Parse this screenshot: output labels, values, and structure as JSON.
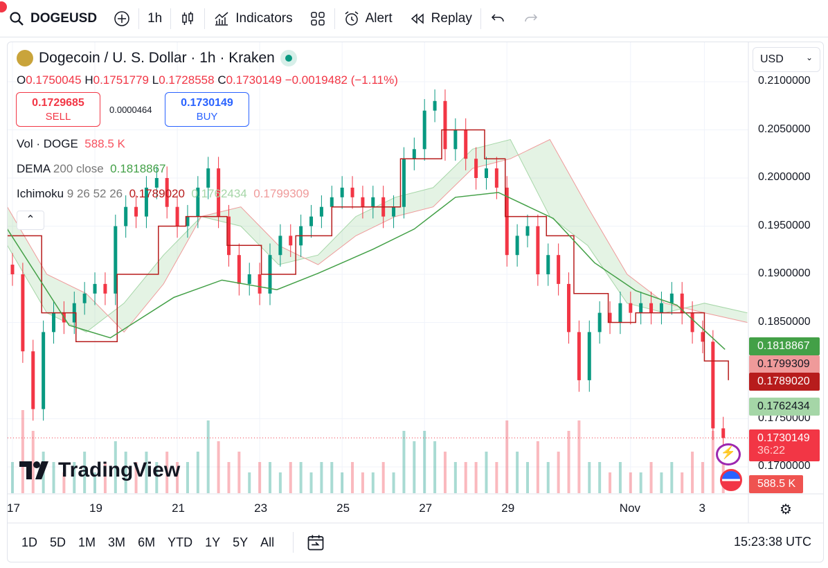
{
  "toolbar": {
    "symbol": "DOGEUSD",
    "interval": "1h",
    "indicators": "Indicators",
    "alert": "Alert",
    "replay": "Replay"
  },
  "legend": {
    "title": "Dogecoin / U. S. Dollar · 1h · Kraken",
    "open_label": "O",
    "open": "0.1750045",
    "high_label": "H",
    "high": "0.1751779",
    "low_label": "L",
    "low": "0.1728558",
    "close_label": "C",
    "close": "0.1730149",
    "change": "−0.0019482 (−1.11%)"
  },
  "trade": {
    "sell_price": "0.1729685",
    "sell_label": "SELL",
    "spread": "0.0000464",
    "buy_price": "0.1730149",
    "buy_label": "BUY"
  },
  "indicators": {
    "vol_name": "Vol · DOGE",
    "vol_value": "588.5 K",
    "dema_name": "DEMA",
    "dema_params": "200 close",
    "dema_value": "0.1818867",
    "ichi_name": "Ichimoku",
    "ichi_params": "9 26 52 26",
    "ichi_v1": "0.1789020",
    "ichi_v2": "0.1762434",
    "ichi_v3": "0.1799309"
  },
  "currency": "USD",
  "price_tags": {
    "dema": "0.1818867",
    "span_b": "0.1799309",
    "base": "0.1789020",
    "span_a": "0.1762434",
    "last": "0.1730149",
    "countdown": "36:22",
    "volume": "588.5 K"
  },
  "ranges": [
    "1D",
    "5D",
    "1M",
    "3M",
    "6M",
    "YTD",
    "1Y",
    "5Y",
    "All"
  ],
  "clock": "15:23:38 UTC",
  "logo": "TradingView",
  "colors": {
    "up": "#089981",
    "down": "#f23645",
    "dema": "#43a047",
    "base": "#b71c1c",
    "span_a": "#a5d6a7",
    "span_b": "#ef9a9a"
  },
  "chart_data": {
    "type": "candlestick",
    "title": "Dogecoin / U. S. Dollar · 1h · Kraken",
    "y_ticks": [
      "0.2100000",
      "0.2050000",
      "0.2000000",
      "0.1950000",
      "0.1900000",
      "0.1850000",
      "0.1750000",
      "0.1700000"
    ],
    "y_tick_values": [
      0.21,
      0.205,
      0.2,
      0.195,
      0.19,
      0.185,
      0.175,
      0.17
    ],
    "ylim": [
      0.1658,
      0.2143
    ],
    "x_ticks": [
      {
        "label": "17",
        "hour": 0
      },
      {
        "label": "19",
        "hour": 48
      },
      {
        "label": "21",
        "hour": 96
      },
      {
        "label": "23",
        "hour": 144
      },
      {
        "label": "25",
        "hour": 192
      },
      {
        "label": "27",
        "hour": 240
      },
      {
        "label": "29",
        "hour": 288
      },
      {
        "label": "Nov",
        "hour": 360
      },
      {
        "label": "3",
        "hour": 403
      }
    ],
    "step_hours": 6,
    "closes": [
      0.19,
      0.182,
      0.176,
      0.184,
      0.186,
      0.185,
      0.187,
      0.188,
      0.189,
      0.188,
      0.195,
      0.197,
      0.196,
      0.199,
      0.2,
      0.197,
      0.195,
      0.196,
      0.199,
      0.201,
      0.196,
      0.192,
      0.189,
      0.19,
      0.188,
      0.192,
      0.194,
      0.193,
      0.195,
      0.196,
      0.197,
      0.198,
      0.199,
      0.198,
      0.197,
      0.198,
      0.196,
      0.197,
      0.202,
      0.203,
      0.207,
      0.208,
      0.203,
      0.205,
      0.202,
      0.2,
      0.201,
      0.199,
      0.192,
      0.194,
      0.195,
      0.19,
      0.192,
      0.189,
      0.184,
      0.179,
      0.184,
      0.186,
      0.185,
      0.187,
      0.186,
      0.187,
      0.186,
      0.187,
      0.188,
      0.186,
      0.184,
      0.183,
      0.174,
      0.173
    ],
    "volumes": [
      3,
      8,
      6,
      4,
      3,
      2,
      3,
      4,
      2,
      3,
      5,
      4,
      3,
      4,
      3,
      4,
      3,
      3,
      4,
      7,
      5,
      3,
      4,
      2,
      3,
      3,
      2,
      3,
      3,
      2,
      3,
      3,
      2,
      3,
      2,
      2,
      3,
      2,
      6,
      5,
      6,
      5,
      4,
      3,
      3,
      3,
      4,
      3,
      7,
      4,
      3,
      5,
      3,
      4,
      6,
      7,
      3,
      3,
      2,
      3,
      2,
      2,
      3,
      2,
      3,
      2,
      4,
      3,
      6,
      4
    ],
    "dema": {
      "hours": [
        -3,
        33,
        57,
        94,
        122,
        154,
        178,
        210,
        234,
        258,
        283,
        315,
        339,
        363,
        387,
        415
      ],
      "values": [
        0.1947,
        0.1847,
        0.1834,
        0.1876,
        0.1894,
        0.1884,
        0.1901,
        0.1926,
        0.1947,
        0.198,
        0.1985,
        0.1958,
        0.1912,
        0.1883,
        0.1868,
        0.1822
      ]
    },
    "ichimoku_base": {
      "hours": [
        -3,
        17,
        37,
        61,
        85,
        101,
        125,
        145,
        165,
        186,
        210,
        226,
        250,
        275,
        287,
        311,
        327,
        347,
        363,
        387,
        403,
        417
      ],
      "values": [
        0.194,
        0.186,
        0.183,
        0.19,
        0.195,
        0.196,
        0.193,
        0.19,
        0.194,
        0.197,
        0.197,
        0.202,
        0.205,
        0.202,
        0.196,
        0.194,
        0.188,
        0.185,
        0.186,
        0.186,
        0.181,
        0.179
      ]
    },
    "ichimoku_span_a": [
      0.193,
      0.186,
      0.184,
      0.187,
      0.192,
      0.196,
      0.195,
      0.191,
      0.192,
      0.196,
      0.198,
      0.199,
      0.203,
      0.204,
      0.196,
      0.193,
      0.187,
      0.186,
      0.187,
      0.186
    ],
    "ichimoku_span_b": [
      0.197,
      0.19,
      0.188,
      0.184,
      0.189,
      0.196,
      0.197,
      0.193,
      0.191,
      0.194,
      0.196,
      0.197,
      0.201,
      0.202,
      0.204,
      0.197,
      0.19,
      0.187,
      0.186,
      0.185
    ],
    "cloud_hours": [
      -3,
      20,
      43,
      65,
      88,
      110,
      133,
      155,
      178,
      200,
      223,
      245,
      268,
      290,
      313,
      335,
      358,
      380,
      403,
      428
    ],
    "last_price": 0.1730149
  }
}
